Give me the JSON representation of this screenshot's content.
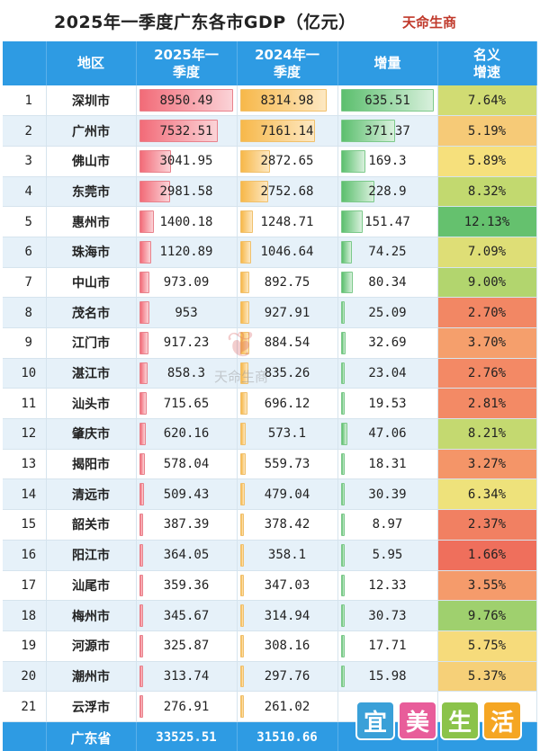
{
  "title": "2025年一季度广东各市GDP（亿元）",
  "brand": "天命生商",
  "headers": {
    "rank": "",
    "region": "地区",
    "y2025": "2025年一季度",
    "y2024": "2024年一季度",
    "increase": "增量",
    "growth": "名义增速"
  },
  "chart_data": {
    "type": "table",
    "columns": [
      "地区",
      "2025年一季度",
      "2024年一季度",
      "增量",
      "名义增速"
    ],
    "rows": [
      {
        "rank": "1",
        "city": "深圳市",
        "gdp2025": 8950.49,
        "gdp2024": 8314.98,
        "increase": 635.51,
        "growth": "7.64%"
      },
      {
        "rank": "2",
        "city": "广州市",
        "gdp2025": 7532.51,
        "gdp2024": 7161.14,
        "increase": 371.37,
        "growth": "5.19%"
      },
      {
        "rank": "3",
        "city": "佛山市",
        "gdp2025": 3041.95,
        "gdp2024": 2872.65,
        "increase": 169.3,
        "growth": "5.89%"
      },
      {
        "rank": "4",
        "city": "东莞市",
        "gdp2025": 2981.58,
        "gdp2024": 2752.68,
        "increase": 228.9,
        "growth": "8.32%"
      },
      {
        "rank": "5",
        "city": "惠州市",
        "gdp2025": 1400.18,
        "gdp2024": 1248.71,
        "increase": 151.47,
        "growth": "12.13%"
      },
      {
        "rank": "6",
        "city": "珠海市",
        "gdp2025": 1120.89,
        "gdp2024": 1046.64,
        "increase": 74.25,
        "growth": "7.09%"
      },
      {
        "rank": "7",
        "city": "中山市",
        "gdp2025": 973.09,
        "gdp2024": 892.75,
        "increase": 80.34,
        "growth": "9.00%"
      },
      {
        "rank": "8",
        "city": "茂名市",
        "gdp2025": 953,
        "gdp2024": 927.91,
        "increase": 25.09,
        "growth": "2.70%"
      },
      {
        "rank": "9",
        "city": "江门市",
        "gdp2025": 917.23,
        "gdp2024": 884.54,
        "increase": 32.69,
        "growth": "3.70%"
      },
      {
        "rank": "10",
        "city": "湛江市",
        "gdp2025": 858.3,
        "gdp2024": 835.26,
        "increase": 23.04,
        "growth": "2.76%"
      },
      {
        "rank": "11",
        "city": "汕头市",
        "gdp2025": 715.65,
        "gdp2024": 696.12,
        "increase": 19.53,
        "growth": "2.81%"
      },
      {
        "rank": "12",
        "city": "肇庆市",
        "gdp2025": 620.16,
        "gdp2024": 573.1,
        "increase": 47.06,
        "growth": "8.21%"
      },
      {
        "rank": "13",
        "city": "揭阳市",
        "gdp2025": 578.04,
        "gdp2024": 559.73,
        "increase": 18.31,
        "growth": "3.27%"
      },
      {
        "rank": "14",
        "city": "清远市",
        "gdp2025": 509.43,
        "gdp2024": 479.04,
        "increase": 30.39,
        "growth": "6.34%"
      },
      {
        "rank": "15",
        "city": "韶关市",
        "gdp2025": 387.39,
        "gdp2024": 378.42,
        "increase": 8.97,
        "growth": "2.37%"
      },
      {
        "rank": "16",
        "city": "阳江市",
        "gdp2025": 364.05,
        "gdp2024": 358.1,
        "increase": 5.95,
        "growth": "1.66%"
      },
      {
        "rank": "17",
        "city": "汕尾市",
        "gdp2025": 359.36,
        "gdp2024": 347.03,
        "increase": 12.33,
        "growth": "3.55%"
      },
      {
        "rank": "18",
        "city": "梅州市",
        "gdp2025": 345.67,
        "gdp2024": 314.94,
        "increase": 30.73,
        "growth": "9.76%"
      },
      {
        "rank": "19",
        "city": "河源市",
        "gdp2025": 325.87,
        "gdp2024": 308.16,
        "increase": 17.71,
        "growth": "5.75%"
      },
      {
        "rank": "20",
        "city": "潮州市",
        "gdp2025": 313.74,
        "gdp2024": 297.76,
        "increase": 15.98,
        "growth": "5.37%"
      },
      {
        "rank": "21",
        "city": "云浮市",
        "gdp2025": 276.91,
        "gdp2024": 261.02,
        "increase": null,
        "growth": null
      }
    ],
    "total": {
      "label": "广东省",
      "gdp2025": 33525.51,
      "gdp2024": 31510.66
    }
  },
  "watermark": {
    "text": "天命生商"
  },
  "stamp": {
    "chars": [
      "宜",
      "美",
      "生",
      "活"
    ]
  },
  "colors": {
    "header_bg": "#2e9be3",
    "bar_2025": "#f26b78",
    "bar_2024": "#f7b84a",
    "bar_increase": "#5cbf6e",
    "growth_high": "#5cbf6e",
    "growth_mid": "#f6e37d",
    "growth_low": "#ef6b5b",
    "brand": "#c0392b"
  }
}
